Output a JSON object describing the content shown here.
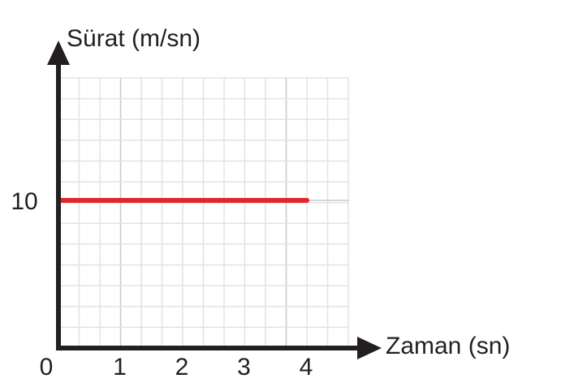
{
  "chart_data": {
    "type": "line",
    "ylabel": "Sürat (m/sn)",
    "xlabel": "Zaman (sn)",
    "x_ticks": [
      "0",
      "1",
      "2",
      "3",
      "4"
    ],
    "y_ticks": [
      "10"
    ],
    "xlim": [
      0,
      4.67
    ],
    "ylim": [
      0,
      18.3
    ],
    "grid": true,
    "series": [
      {
        "color": "#e2262b",
        "points": [
          {
            "x": 0,
            "y": 10
          },
          {
            "x": 4,
            "y": 10
          }
        ]
      }
    ]
  }
}
